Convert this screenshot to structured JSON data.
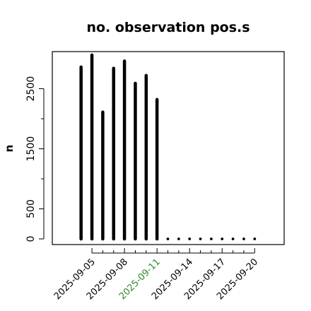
{
  "chart_data": {
    "type": "bar",
    "title": "no. observation pos.s",
    "ylabel": "n",
    "xlabel": "",
    "ylim": [
      0,
      3000
    ],
    "y_ticks": [
      {
        "value": 0,
        "label": "0"
      },
      {
        "value": 500,
        "label": "500"
      },
      {
        "value": 1500,
        "label": "1500"
      },
      {
        "value": 2500,
        "label": "2500"
      }
    ],
    "y_minor_ticks": [
      1000,
      2000
    ],
    "x_tick_labels": [
      {
        "date": "2025-09-05",
        "label": "2025-09-05",
        "color": "#000000"
      },
      {
        "date": "2025-09-08",
        "label": "2025-09-08",
        "color": "#000000"
      },
      {
        "date": "2025-09-11",
        "label": "2025-09-11",
        "color": "#2e8b2e"
      },
      {
        "date": "2025-09-14",
        "label": "2025-09-14",
        "color": "#000000"
      },
      {
        "date": "2025-09-17",
        "label": "2025-09-17",
        "color": "#000000"
      },
      {
        "date": "2025-09-20",
        "label": "2025-09-20",
        "color": "#000000"
      }
    ],
    "x_minor_ticks": [
      "2025-09-06",
      "2025-09-07",
      "2025-09-09",
      "2025-09-10",
      "2025-09-12",
      "2025-09-13",
      "2025-09-15",
      "2025-09-16",
      "2025-09-18",
      "2025-09-19"
    ],
    "x_range": [
      "2025-09-02",
      "2025-09-22"
    ],
    "grid": false,
    "series": [
      {
        "dates": [
          "2025-09-04",
          "2025-09-05",
          "2025-09-06",
          "2025-09-07",
          "2025-09-08",
          "2025-09-09",
          "2025-09-10",
          "2025-09-11",
          "2025-09-12",
          "2025-09-13",
          "2025-09-14",
          "2025-09-15",
          "2025-09-16",
          "2025-09-17",
          "2025-09-18",
          "2025-09-19",
          "2025-09-20"
        ],
        "values": [
          2860,
          3060,
          2110,
          2840,
          2960,
          2590,
          2720,
          2320,
          0,
          0,
          0,
          0,
          0,
          0,
          0,
          0,
          0
        ]
      }
    ],
    "colors": {
      "bar": "#000000",
      "highlight_date_label": "#2e8b2e",
      "axis": "#000000"
    }
  }
}
